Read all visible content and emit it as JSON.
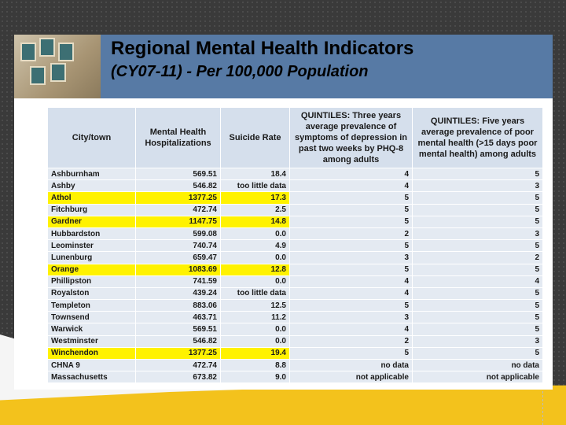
{
  "title": {
    "line1": "Regional Mental Health Indicators",
    "line2": "(CY07-11) - Per 100,000 Population"
  },
  "columns": [
    "City/town",
    "Mental Health Hospitalizations",
    "Suicide Rate",
    "QUINTILES: Three years average prevalence of symptoms of depression in past two weeks by PHQ-8 among adults",
    "QUINTILES: Five years average prevalence of poor mental health (>15 days poor mental health) among adults"
  ],
  "rows": [
    {
      "city": "Ashburnham",
      "hosp": "569.51",
      "suicide": "18.4",
      "depression": "4",
      "poor_mh": "5",
      "highlight": false
    },
    {
      "city": "Ashby",
      "hosp": "546.82",
      "suicide": "too little data",
      "depression": "4",
      "poor_mh": "3",
      "highlight": false
    },
    {
      "city": "Athol",
      "hosp": "1377.25",
      "suicide": "17.3",
      "depression": "5",
      "poor_mh": "5",
      "highlight": true
    },
    {
      "city": "Fitchburg",
      "hosp": "472.74",
      "suicide": "2.5",
      "depression": "5",
      "poor_mh": "5",
      "highlight": false
    },
    {
      "city": "Gardner",
      "hosp": "1147.75",
      "suicide": "14.8",
      "depression": "5",
      "poor_mh": "5",
      "highlight": true
    },
    {
      "city": "Hubbardston",
      "hosp": "599.08",
      "suicide": "0.0",
      "depression": "2",
      "poor_mh": "3",
      "highlight": false
    },
    {
      "city": "Leominster",
      "hosp": "740.74",
      "suicide": "4.9",
      "depression": "5",
      "poor_mh": "5",
      "highlight": false
    },
    {
      "city": "Lunenburg",
      "hosp": "659.47",
      "suicide": "0.0",
      "depression": "3",
      "poor_mh": "2",
      "highlight": false
    },
    {
      "city": "Orange",
      "hosp": "1083.69",
      "suicide": "12.8",
      "depression": "5",
      "poor_mh": "5",
      "highlight": true
    },
    {
      "city": "Phillipston",
      "hosp": "741.59",
      "suicide": "0.0",
      "depression": "4",
      "poor_mh": "4",
      "highlight": false
    },
    {
      "city": "Royalston",
      "hosp": "439.24",
      "suicide": "too little data",
      "depression": "4",
      "poor_mh": "5",
      "highlight": false
    },
    {
      "city": "Templeton",
      "hosp": "883.06",
      "suicide": "12.5",
      "depression": "5",
      "poor_mh": "5",
      "highlight": false
    },
    {
      "city": "Townsend",
      "hosp": "463.71",
      "suicide": "11.2",
      "depression": "3",
      "poor_mh": "5",
      "highlight": false
    },
    {
      "city": "Warwick",
      "hosp": "569.51",
      "suicide": "0.0",
      "depression": "4",
      "poor_mh": "5",
      "highlight": false
    },
    {
      "city": "Westminster",
      "hosp": "546.82",
      "suicide": "0.0",
      "depression": "2",
      "poor_mh": "3",
      "highlight": false
    },
    {
      "city": "Winchendon",
      "hosp": "1377.25",
      "suicide": "19.4",
      "depression": "5",
      "poor_mh": "5",
      "highlight": true
    },
    {
      "city": "CHNA 9",
      "hosp": "472.74",
      "suicide": "8.8",
      "depression": "no data",
      "poor_mh": "no data",
      "highlight": false
    },
    {
      "city": "Massachusetts",
      "hosp": "673.82",
      "suicide": "9.0",
      "depression": "not applicable",
      "poor_mh": "not applicable",
      "highlight": false
    }
  ],
  "colors": {
    "banner": "#577aa5",
    "header_cell": "#d5dfec",
    "body_cell": "#e4eaf2",
    "highlight": "#fff200",
    "accent_yellow": "#f3c21c"
  }
}
